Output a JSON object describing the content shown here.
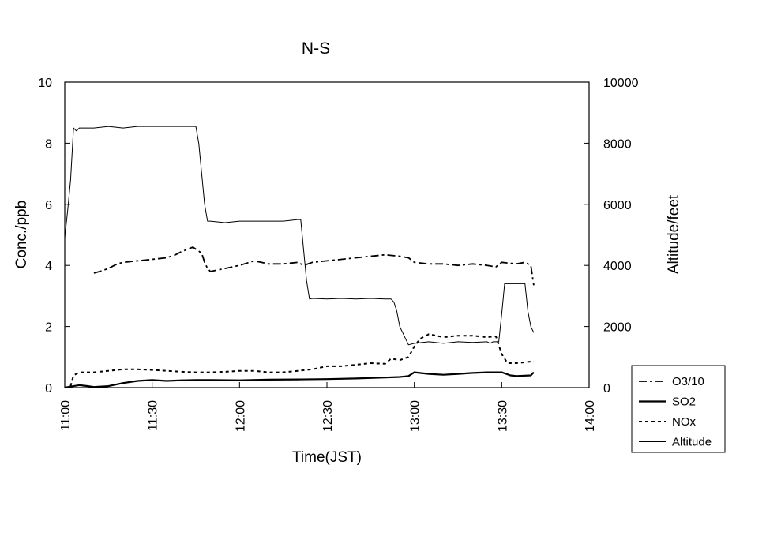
{
  "chart_data": {
    "type": "line",
    "title": "N-S",
    "xlabel": "Time(JST)",
    "ylabel": "Conc./ppb",
    "y2label": "Altitude/feet",
    "xlim": [
      "11:00",
      "14:00"
    ],
    "ylim": [
      0,
      10
    ],
    "y2lim": [
      0,
      10000
    ],
    "x_ticks": [
      "11:00",
      "11:30",
      "12:00",
      "12:30",
      "13:00",
      "13:30",
      "14:00"
    ],
    "y_ticks": [
      "0",
      "2",
      "4",
      "6",
      "8",
      "10"
    ],
    "y2_ticks": [
      "0",
      "2000",
      "4000",
      "6000",
      "8000",
      "10000"
    ],
    "grid": false,
    "legend_position": "bottom-right",
    "series": [
      {
        "name": "O3/10",
        "axis": "left",
        "style": "dash-dot",
        "x": [
          "11:10",
          "11:12",
          "11:15",
          "11:18",
          "11:20",
          "11:25",
          "11:30",
          "11:35",
          "11:38",
          "11:40",
          "11:44",
          "11:47",
          "11:48",
          "11:49",
          "11:50",
          "11:55",
          "12:00",
          "12:05",
          "12:10",
          "12:15",
          "12:20",
          "12:22",
          "12:25",
          "12:30",
          "12:35",
          "12:40",
          "12:45",
          "12:50",
          "12:55",
          "12:58",
          "13:00",
          "13:05",
          "13:10",
          "13:15",
          "13:20",
          "13:25",
          "13:28",
          "13:30",
          "13:35",
          "13:38",
          "13:40",
          "13:41"
        ],
        "values": [
          3.75,
          3.8,
          3.9,
          4.05,
          4.1,
          4.15,
          4.2,
          4.25,
          4.35,
          4.45,
          4.6,
          4.4,
          4.1,
          3.9,
          3.8,
          3.9,
          4.0,
          4.15,
          4.05,
          4.05,
          4.1,
          4.0,
          4.1,
          4.15,
          4.2,
          4.25,
          4.3,
          4.35,
          4.3,
          4.25,
          4.1,
          4.05,
          4.05,
          4.0,
          4.05,
          4.0,
          3.95,
          4.1,
          4.05,
          4.1,
          4.0,
          3.35
        ]
      },
      {
        "name": "SO2",
        "axis": "left",
        "style": "solid-thick",
        "x": [
          "11:00",
          "11:03",
          "11:05",
          "11:08",
          "11:10",
          "11:15",
          "11:20",
          "11:25",
          "11:30",
          "11:35",
          "11:40",
          "11:45",
          "11:50",
          "12:00",
          "12:10",
          "12:20",
          "12:30",
          "12:40",
          "12:50",
          "12:55",
          "12:58",
          "13:00",
          "13:05",
          "13:10",
          "13:15",
          "13:20",
          "13:25",
          "13:30",
          "13:33",
          "13:35",
          "13:40",
          "13:41"
        ],
        "values": [
          0.0,
          0.05,
          0.08,
          0.05,
          0.02,
          0.05,
          0.15,
          0.22,
          0.25,
          0.22,
          0.24,
          0.25,
          0.25,
          0.24,
          0.26,
          0.27,
          0.28,
          0.3,
          0.33,
          0.35,
          0.38,
          0.5,
          0.45,
          0.42,
          0.45,
          0.48,
          0.5,
          0.5,
          0.4,
          0.38,
          0.4,
          0.5
        ]
      },
      {
        "name": "NOx",
        "axis": "left",
        "style": "dotted",
        "x": [
          "11:02",
          "11:03",
          "11:05",
          "11:10",
          "11:15",
          "11:20",
          "11:25",
          "11:30",
          "11:35",
          "11:40",
          "11:45",
          "11:50",
          "11:55",
          "12:00",
          "12:05",
          "12:10",
          "12:15",
          "12:20",
          "12:25",
          "12:30",
          "12:35",
          "12:40",
          "12:45",
          "12:50",
          "12:52",
          "12:55",
          "12:58",
          "13:00",
          "13:02",
          "13:05",
          "13:10",
          "13:15",
          "13:20",
          "13:25",
          "13:28",
          "13:30",
          "13:32",
          "13:35",
          "13:40",
          "13:41"
        ],
        "values": [
          0.05,
          0.4,
          0.5,
          0.5,
          0.55,
          0.6,
          0.6,
          0.58,
          0.55,
          0.52,
          0.5,
          0.5,
          0.52,
          0.55,
          0.55,
          0.5,
          0.5,
          0.55,
          0.6,
          0.7,
          0.7,
          0.75,
          0.8,
          0.78,
          0.95,
          0.9,
          1.0,
          1.35,
          1.6,
          1.75,
          1.65,
          1.7,
          1.7,
          1.65,
          1.68,
          1.1,
          0.8,
          0.8,
          0.85,
          0.85
        ]
      },
      {
        "name": "Altitude",
        "axis": "right",
        "style": "solid-thin",
        "x": [
          "11:00",
          "11:01",
          "11:02",
          "11:03",
          "11:04",
          "11:05",
          "11:10",
          "11:15",
          "11:20",
          "11:25",
          "11:30",
          "11:35",
          "11:40",
          "11:44",
          "11:45",
          "11:46",
          "11:47",
          "11:48",
          "11:49",
          "11:50",
          "11:55",
          "12:00",
          "12:05",
          "12:10",
          "12:15",
          "12:20",
          "12:21",
          "12:22",
          "12:23",
          "12:24",
          "12:25",
          "12:30",
          "12:35",
          "12:40",
          "12:45",
          "12:50",
          "12:52",
          "12:53",
          "12:54",
          "12:55",
          "12:58",
          "13:00",
          "13:05",
          "13:10",
          "13:15",
          "13:20",
          "13:25",
          "13:26",
          "13:27",
          "13:28",
          "13:29",
          "13:30",
          "13:31",
          "13:32",
          "13:35",
          "13:38",
          "13:39",
          "13:40",
          "13:41"
        ],
        "values": [
          4900,
          5800,
          6800,
          8500,
          8400,
          8500,
          8500,
          8550,
          8500,
          8550,
          8550,
          8550,
          8550,
          8550,
          8550,
          8000,
          7000,
          6000,
          5450,
          5450,
          5400,
          5450,
          5450,
          5450,
          5450,
          5500,
          5500,
          4500,
          3500,
          2900,
          2920,
          2900,
          2920,
          2900,
          2920,
          2900,
          2900,
          2800,
          2500,
          2000,
          1400,
          1450,
          1500,
          1450,
          1500,
          1480,
          1500,
          1450,
          1500,
          1500,
          1500,
          2400,
          3400,
          3400,
          3400,
          3400,
          2500,
          2000,
          1800
        ]
      }
    ]
  }
}
